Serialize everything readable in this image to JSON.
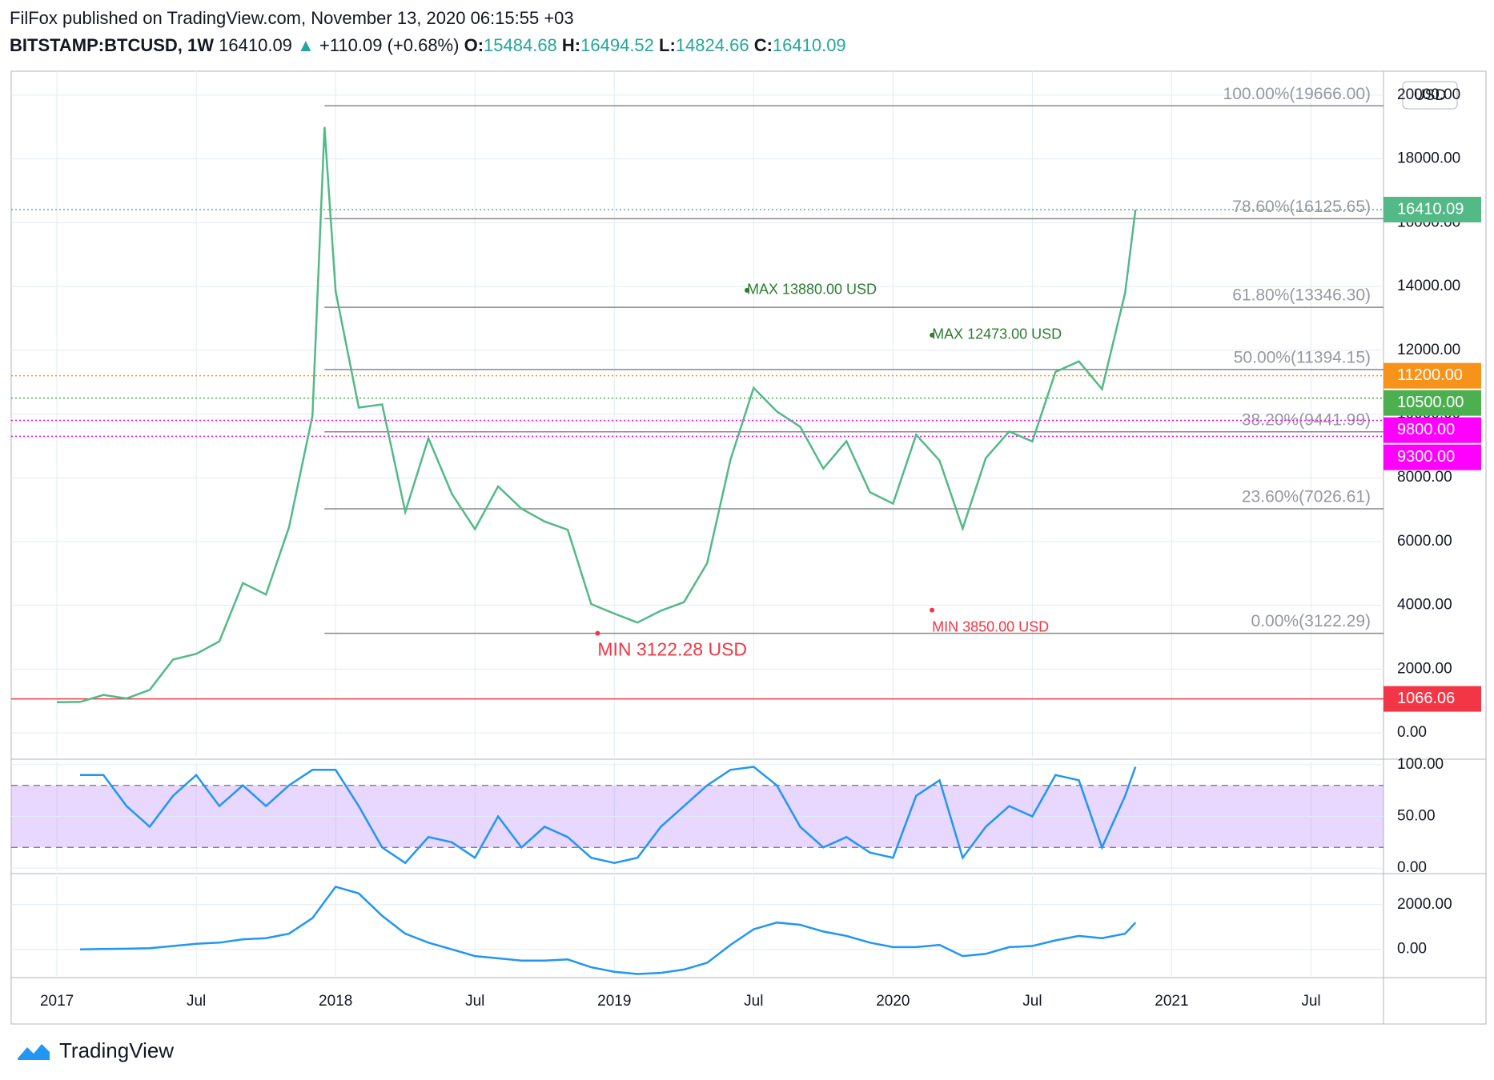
{
  "header": {
    "title": "FilFox published on TradingView.com, November 13, 2020 06:15:55 +03",
    "symbol": "BITSTAMP:BTCUSD, 1W",
    "last": "16410.09",
    "arrow": "▲",
    "change": "+110.09 (+0.68%)",
    "o_label": "O:",
    "open": "15484.68",
    "h_label": "H:",
    "high": "16494.52",
    "l_label": "L:",
    "low": "14824.66",
    "c_label": "C:",
    "close": "16410.09"
  },
  "currency_button": "USD",
  "footer": "TradingView",
  "chart_data": [
    {
      "type": "line",
      "color": "#53b987",
      "x": [
        2017.0,
        2017.083,
        2017.167,
        2017.25,
        2017.333,
        2017.417,
        2017.5,
        2017.583,
        2017.667,
        2017.75,
        2017.833,
        2017.917,
        2017.96,
        2018.0,
        2018.083,
        2018.167,
        2018.25,
        2018.333,
        2018.417,
        2018.5,
        2018.583,
        2018.667,
        2018.75,
        2018.833,
        2018.917,
        2019.0,
        2019.083,
        2019.167,
        2019.25,
        2019.333,
        2019.417,
        2019.5,
        2019.583,
        2019.667,
        2019.75,
        2019.833,
        2019.917,
        2020.0,
        2020.083,
        2020.167,
        2020.25,
        2020.333,
        2020.417,
        2020.5,
        2020.583,
        2020.667,
        2020.75,
        2020.833,
        2020.87
      ],
      "values": [
        964,
        970,
        1190,
        1080,
        1350,
        2300,
        2480,
        2870,
        4700,
        4340,
        6450,
        9950,
        19000,
        13850,
        10200,
        10300,
        6930,
        9240,
        7500,
        6390,
        7730,
        7030,
        6630,
        6370,
        4040,
        3740,
        3460,
        3830,
        4100,
        5320,
        8570,
        10820,
        10080,
        9600,
        8290,
        9150,
        7550,
        7190,
        9350,
        8540,
        6410,
        8620,
        9450,
        9140,
        11320,
        11650,
        10780,
        13800,
        16410.09
      ],
      "xlim": [
        2016.836,
        2021.76
      ],
      "xticks": [
        2017,
        {
          "value": 2017.5,
          "label": "Jul"
        },
        2018,
        {
          "value": 2018.5,
          "label": "Jul"
        },
        2019,
        {
          "value": 2019.5,
          "label": "Jul"
        },
        2020,
        {
          "value": 2020.5,
          "label": "Jul"
        },
        2021,
        {
          "value": 2021.5,
          "label": "Jul"
        }
      ],
      "ylim": [
        -750,
        20750
      ],
      "yticks": [
        {
          "value": 0,
          "label": "0.00"
        },
        {
          "value": 2000,
          "label": "2000.00"
        },
        {
          "value": 4000,
          "label": "4000.00"
        },
        {
          "value": 6000,
          "label": "6000.00"
        },
        {
          "value": 8000,
          "label": "8000.00"
        },
        {
          "value": 10000,
          "label": "10000.00"
        },
        {
          "value": 12000,
          "label": "12000.00"
        },
        {
          "value": 14000,
          "label": "14000.00"
        },
        {
          "value": 16000,
          "label": "16000.00"
        },
        {
          "value": 18000,
          "label": "18000.00"
        },
        {
          "value": 20000,
          "label": "20000.00"
        }
      ],
      "grid": true,
      "fib_levels": [
        {
          "value": 19666,
          "label": "100.00%(19666.00)"
        },
        {
          "value": 16125.65,
          "label": "78.60%(16125.65)"
        },
        {
          "value": 13346.3,
          "label": "61.80%(13346.30)"
        },
        {
          "value": 11394.15,
          "label": "50.00%(11394.15)"
        },
        {
          "value": 9441.99,
          "label": "38.20%(9441.99)"
        },
        {
          "value": 7026.61,
          "label": "23.60%(7026.61)"
        },
        {
          "value": 3122.29,
          "label": "0.00%(3122.29)"
        }
      ],
      "price_levels": [
        {
          "value": 16410.09,
          "color": "#53b987"
        },
        {
          "value": 11200,
          "label": "11200.00",
          "color": "#f7931a"
        },
        {
          "value": 10500,
          "label": "10500.00",
          "color": "#4caf50"
        },
        {
          "value": 9800,
          "label": "9800.00",
          "color": "#ff00ff"
        },
        {
          "value": 9300,
          "label": "9300.00",
          "color": "#ff00ff"
        },
        {
          "value": 1066.06,
          "label": "1066.06",
          "color": "#f23645"
        }
      ],
      "annotations": [
        {
          "text": "MAX 13880.00 USD",
          "x": 2019.476,
          "value": 13880,
          "color": "#2e7d32"
        },
        {
          "text": "MAX 12473.00 USD",
          "x": 2020.14,
          "value": 12473,
          "color": "#2e7d32"
        },
        {
          "text": "MIN 3850.00 USD",
          "x": 2020.14,
          "value": 3850,
          "color": "#f23645"
        },
        {
          "text": "MIN 3122.28 USD",
          "x": 2018.94,
          "value": 3122.28,
          "color": "#f23645"
        }
      ]
    },
    {
      "type": "line",
      "color": "#2196f3",
      "x": [
        2017.083,
        2017.167,
        2017.25,
        2017.333,
        2017.417,
        2017.5,
        2017.583,
        2017.667,
        2017.75,
        2017.833,
        2017.917,
        2018.0,
        2018.083,
        2018.167,
        2018.25,
        2018.333,
        2018.417,
        2018.5,
        2018.583,
        2018.667,
        2018.75,
        2018.833,
        2018.917,
        2019.0,
        2019.083,
        2019.167,
        2019.25,
        2019.333,
        2019.417,
        2019.5,
        2019.583,
        2019.667,
        2019.75,
        2019.833,
        2019.917,
        2020.0,
        2020.083,
        2020.167,
        2020.25,
        2020.333,
        2020.417,
        2020.5,
        2020.583,
        2020.667,
        2020.75,
        2020.833,
        2020.87
      ],
      "values": [
        90,
        90,
        60,
        40,
        70,
        90,
        60,
        80,
        60,
        80,
        95,
        95,
        60,
        20,
        5,
        30,
        25,
        10,
        50,
        20,
        40,
        30,
        10,
        5,
        10,
        40,
        60,
        80,
        95,
        98,
        80,
        40,
        20,
        30,
        15,
        10,
        70,
        85,
        10,
        40,
        60,
        50,
        90,
        85,
        20,
        70,
        98
      ],
      "ylim": [
        -3,
        103
      ],
      "band": [
        20,
        80
      ],
      "yticks": [
        {
          "value": 0,
          "label": "0.00"
        },
        {
          "value": 50,
          "label": "50.00"
        },
        {
          "value": 100,
          "label": "100.00"
        }
      ]
    },
    {
      "type": "line",
      "color": "#2196f3",
      "x": [
        2017.083,
        2017.167,
        2017.25,
        2017.333,
        2017.417,
        2017.5,
        2017.583,
        2017.667,
        2017.75,
        2017.833,
        2017.917,
        2018.0,
        2018.083,
        2018.167,
        2018.25,
        2018.333,
        2018.417,
        2018.5,
        2018.583,
        2018.667,
        2018.75,
        2018.833,
        2018.917,
        2019.0,
        2019.083,
        2019.167,
        2019.25,
        2019.333,
        2019.417,
        2019.5,
        2019.583,
        2019.667,
        2019.75,
        2019.833,
        2019.917,
        2020.0,
        2020.083,
        2020.167,
        2020.25,
        2020.333,
        2020.417,
        2020.5,
        2020.583,
        2020.667,
        2020.75,
        2020.833,
        2020.87
      ],
      "values": [
        0,
        20,
        30,
        50,
        150,
        250,
        300,
        450,
        500,
        700,
        1400,
        2800,
        2500,
        1500,
        700,
        300,
        0,
        -300,
        -400,
        -500,
        -500,
        -450,
        -800,
        -1000,
        -1100,
        -1050,
        -900,
        -600,
        200,
        900,
        1200,
        1100,
        800,
        600,
        300,
        100,
        100,
        200,
        -300,
        -200,
        100,
        150,
        400,
        600,
        500,
        700,
        1200
      ],
      "ylim": [
        -1190,
        3280
      ],
      "yticks": [
        {
          "value": 0,
          "label": "0.00"
        },
        {
          "value": 2000,
          "label": "2000.00"
        }
      ]
    }
  ]
}
